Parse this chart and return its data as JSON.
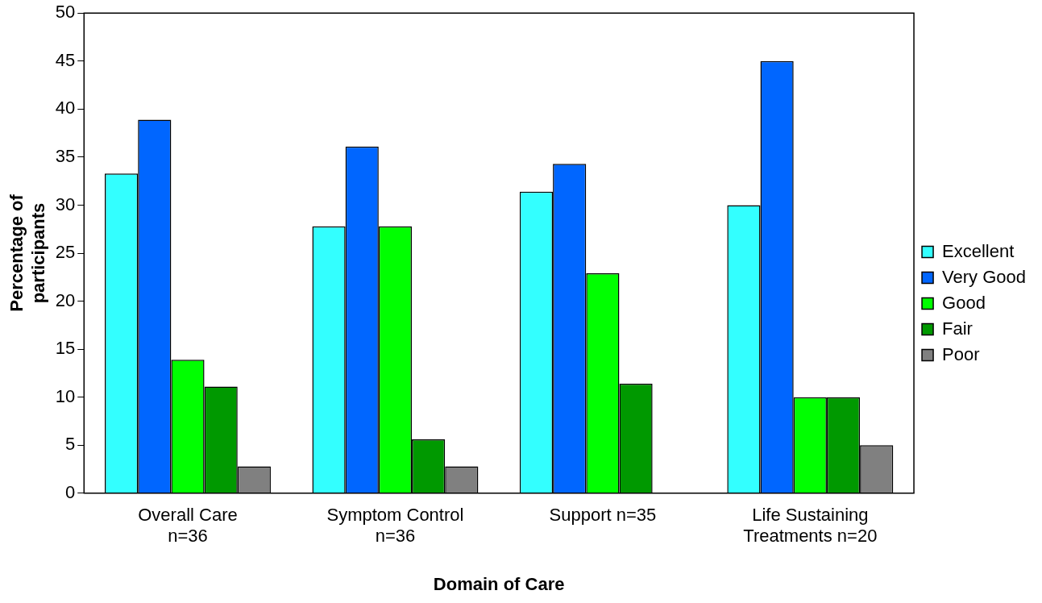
{
  "chart_data": {
    "type": "bar",
    "xlabel": "Domain of Care",
    "ylabel": "Percentage of participants",
    "categories": [
      "Overall Care n=36",
      "Symptom Control n=36",
      "Support n=35",
      "Life Sustaining Treatments n=20"
    ],
    "series": [
      {
        "name": "Excellent",
        "color": "#33ffff",
        "values": [
          33.3,
          27.8,
          31.4,
          30
        ]
      },
      {
        "name": "Very Good",
        "color": "#0066ff",
        "values": [
          38.9,
          36.1,
          34.3,
          45
        ]
      },
      {
        "name": "Good",
        "color": "#00ff00",
        "values": [
          13.9,
          27.8,
          22.9,
          10
        ]
      },
      {
        "name": "Fair",
        "color": "#009900",
        "values": [
          11.1,
          5.6,
          11.4,
          10
        ]
      },
      {
        "name": "Poor",
        "color": "#808080",
        "values": [
          2.8,
          2.8,
          0,
          5
        ]
      }
    ],
    "ylim": [
      0,
      50
    ],
    "yticks": [
      0,
      5,
      10,
      15,
      20,
      25,
      30,
      35,
      40,
      45,
      50
    ],
    "grid": false,
    "legend": "right"
  }
}
